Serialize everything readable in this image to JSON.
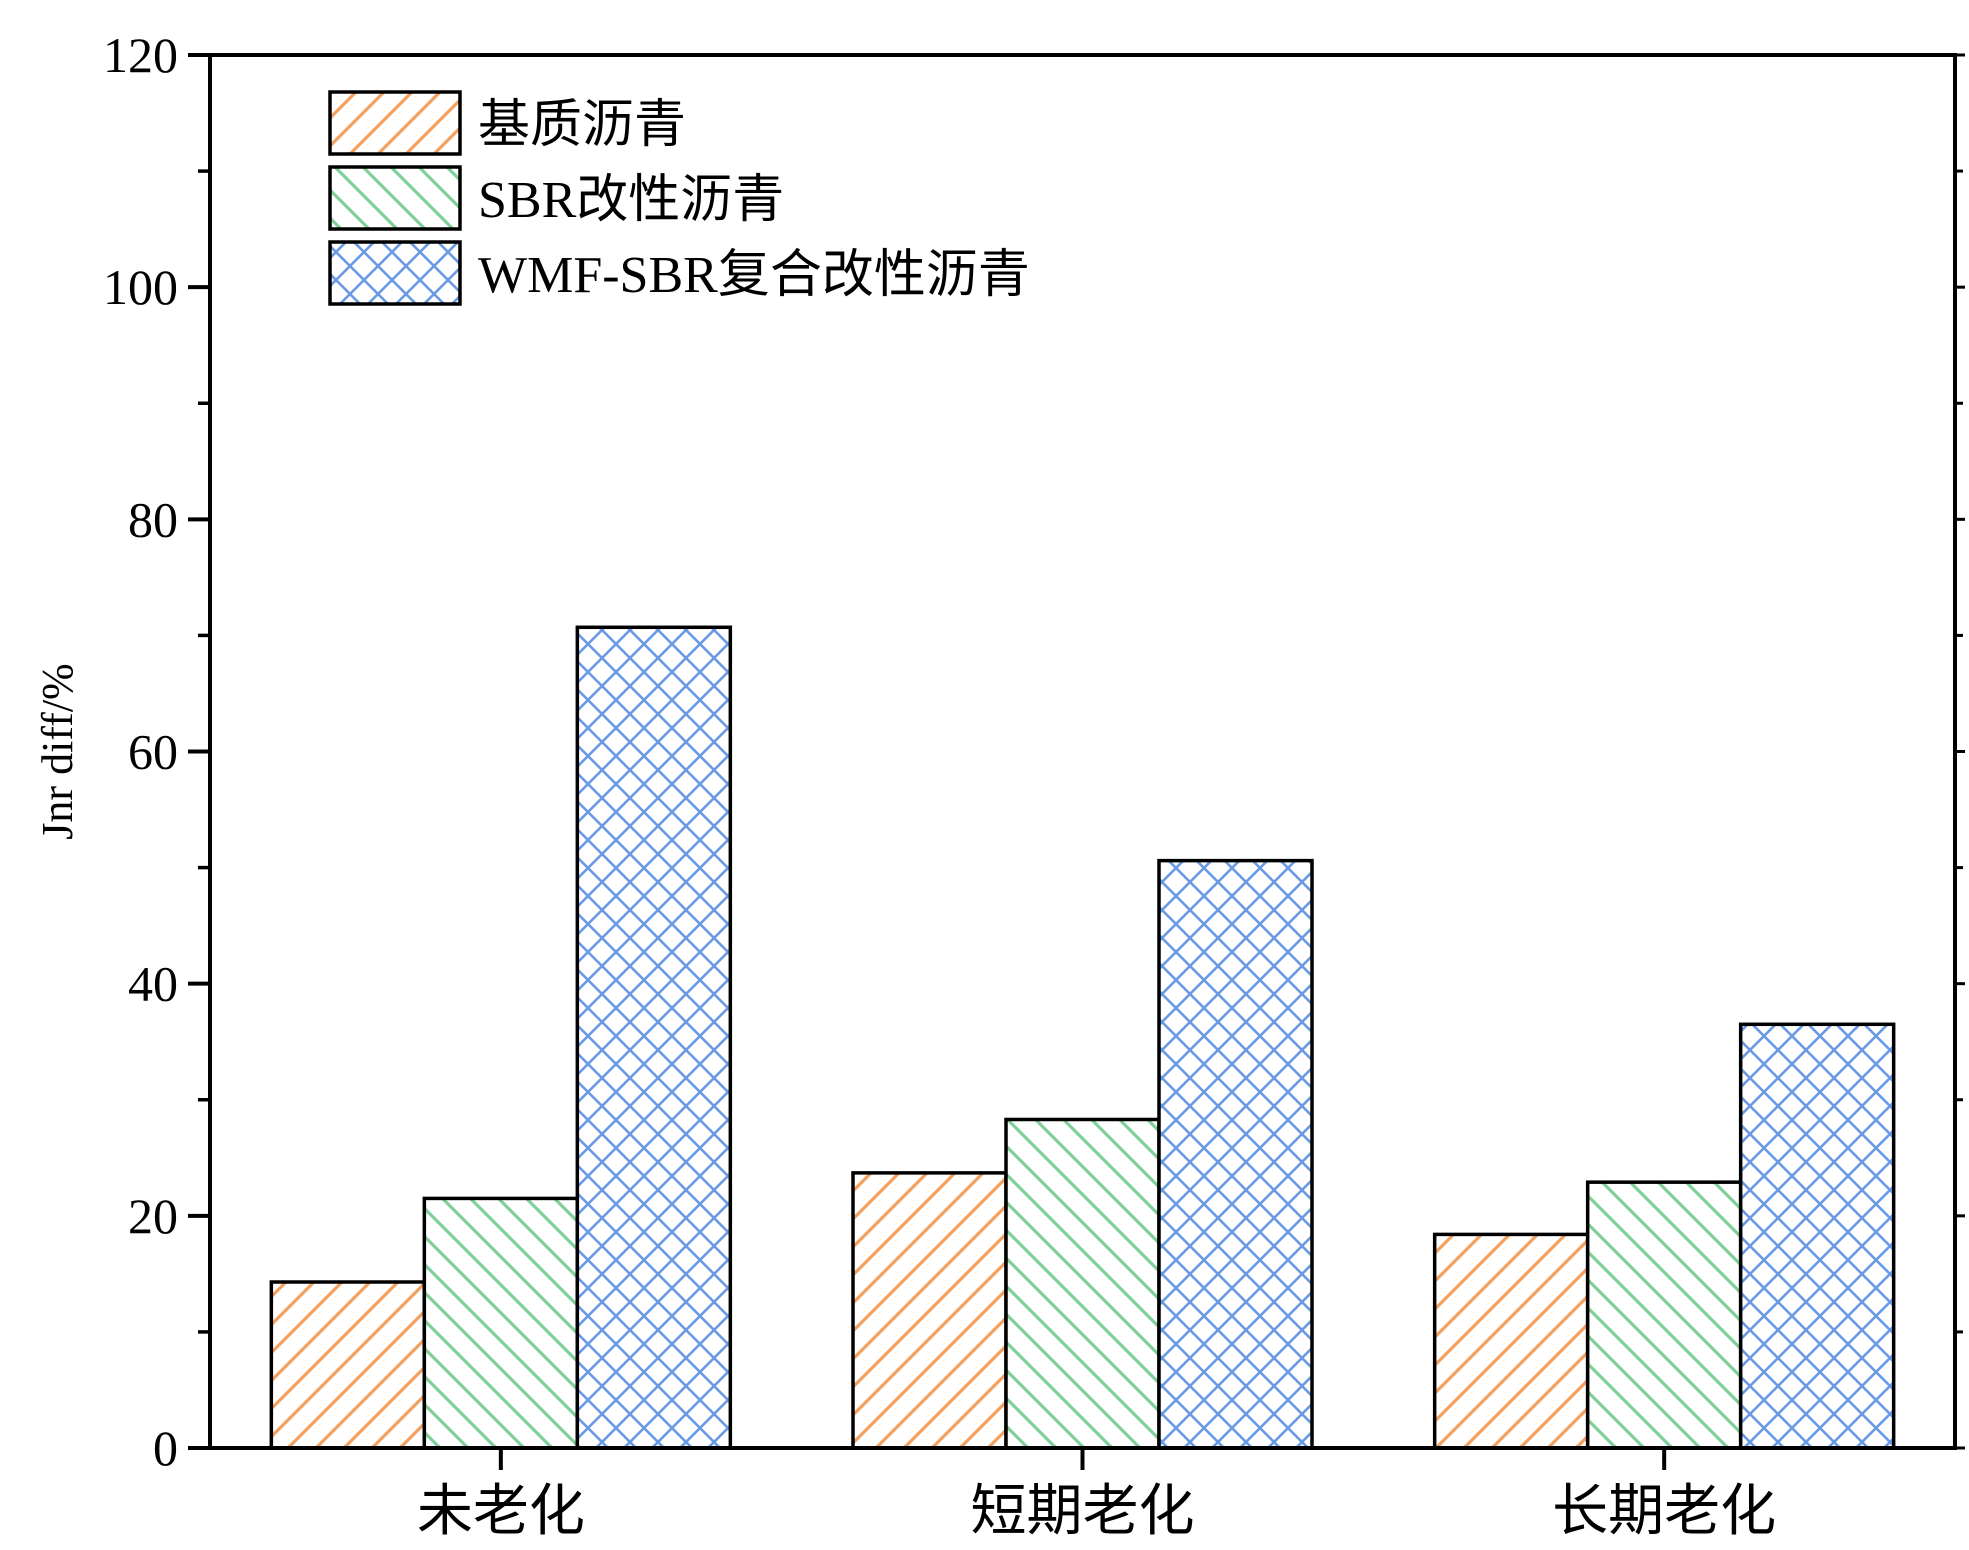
{
  "chart_data": {
    "type": "bar",
    "categories": [
      "未老化",
      "短期老化",
      "长期老化"
    ],
    "series": [
      {
        "name": "基质沥青",
        "values": [
          14.3,
          23.7,
          18.4
        ],
        "color": "#F4A05E",
        "pattern": "diagonal-up"
      },
      {
        "name": "SBR改性沥青",
        "values": [
          21.5,
          28.3,
          22.9
        ],
        "color": "#7FD09A",
        "pattern": "diagonal-down"
      },
      {
        "name": "WMF-SBR复合改性沥青",
        "values": [
          70.7,
          50.6,
          36.5
        ],
        "color": "#6A9AE3",
        "pattern": "crosshatch"
      }
    ],
    "title": "",
    "xlabel": "",
    "ylabel": "Jnr diff/%",
    "ylim": [
      0,
      120
    ],
    "yticks": [
      "0",
      "20",
      "40",
      "60",
      "80",
      "100",
      "120"
    ],
    "grid": false,
    "legend_position": "top-left"
  }
}
